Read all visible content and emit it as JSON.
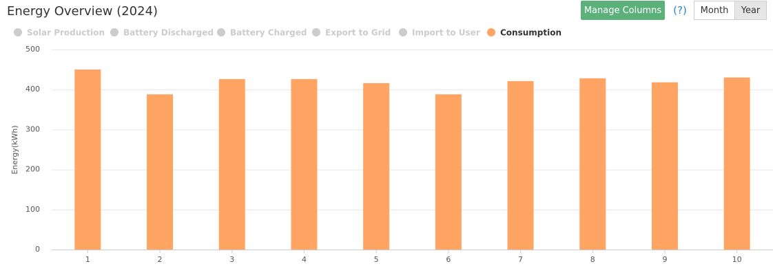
{
  "ui": {
    "manage_columns": "Manage Columns",
    "help": "(?)",
    "month": "Month",
    "year": "Year"
  },
  "chart_data": {
    "type": "bar",
    "title": "Energy Overview (2024)",
    "y_label": "Energy(kWh)",
    "categories": [
      "1",
      "2",
      "3",
      "4",
      "5",
      "6",
      "7",
      "8",
      "9",
      "10"
    ],
    "series": [
      {
        "name": "Solar Production",
        "color": "#cccccc",
        "visible": false
      },
      {
        "name": "Battery Discharged",
        "color": "#cccccc",
        "visible": false
      },
      {
        "name": "Battery Charged",
        "color": "#cccccc",
        "visible": false
      },
      {
        "name": "Export to Grid",
        "color": "#cccccc",
        "visible": false
      },
      {
        "name": "Import to User",
        "color": "#cccccc",
        "visible": false
      },
      {
        "name": "Consumption",
        "color": "#ffa463",
        "visible": true,
        "values": [
          450,
          388,
          426,
          426,
          416,
          388,
          421,
          428,
          418,
          430
        ]
      }
    ],
    "ylim": [
      0,
      500
    ],
    "yticks": [
      0,
      100,
      200,
      300,
      400,
      500
    ],
    "grid": true,
    "legend": "top"
  }
}
